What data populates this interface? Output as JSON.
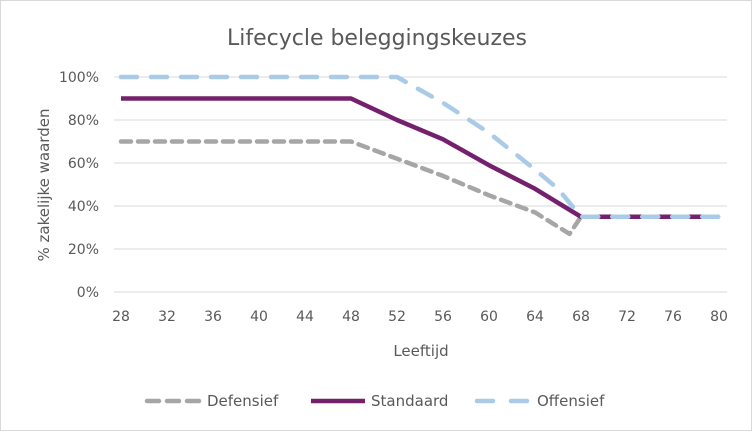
{
  "chart_data": {
    "type": "line",
    "title": "Lifecycle beleggingskeuzes",
    "xlabel": "Leeftijd",
    "ylabel": "% zakelijke waarden",
    "xlim": [
      28,
      80
    ],
    "ylim": [
      0,
      1
    ],
    "x_ticks": [
      28,
      32,
      36,
      40,
      44,
      48,
      52,
      56,
      60,
      64,
      68,
      72,
      76,
      80
    ],
    "x_tick_labels": [
      "28",
      "32",
      "36",
      "40",
      "44",
      "48",
      "52",
      "56",
      "60",
      "64",
      "68",
      "72",
      "76",
      "80"
    ],
    "y_ticks": [
      0,
      0.2,
      0.4,
      0.6,
      0.8,
      1.0
    ],
    "y_tick_labels": [
      "0%",
      "20%",
      "40%",
      "60%",
      "80%",
      "100%"
    ],
    "grid": "horizontal",
    "legend_position": "bottom",
    "series": [
      {
        "name": "Defensief",
        "color": "#a6a6a6",
        "style": "dashed",
        "x": [
          28,
          48,
          52,
          56,
          60,
          64,
          67,
          68,
          80
        ],
        "values": [
          0.7,
          0.7,
          0.62,
          0.54,
          0.45,
          0.37,
          0.27,
          0.35,
          0.35
        ]
      },
      {
        "name": "Standaard",
        "color": "#74206c",
        "style": "solid",
        "x": [
          28,
          48,
          52,
          56,
          60,
          64,
          68,
          80
        ],
        "values": [
          0.9,
          0.9,
          0.8,
          0.71,
          0.59,
          0.48,
          0.35,
          0.35
        ]
      },
      {
        "name": "Offensief",
        "color": "#a9cbe8",
        "style": "dashed-long",
        "x": [
          28,
          52,
          56,
          60,
          64,
          66,
          68,
          80
        ],
        "values": [
          1.0,
          1.0,
          0.88,
          0.74,
          0.57,
          0.48,
          0.35,
          0.35
        ]
      }
    ]
  }
}
